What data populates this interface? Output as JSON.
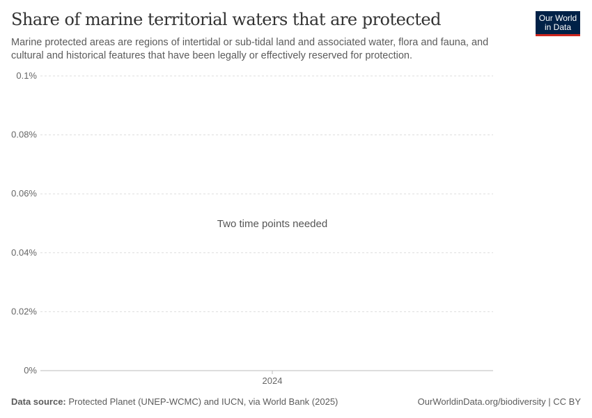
{
  "header": {
    "title": "Share of marine territorial waters that are protected",
    "subtitle": "Marine protected areas are regions of intertidal or sub-tidal land and associated water, flora and fauna, and cultural and historical features that have been legally or effectively reserved for protection.",
    "logo": "Our World in Data"
  },
  "chart_data": {
    "type": "line",
    "title": "Share of marine territorial waters that are protected",
    "yticks": [
      "0%",
      "0.02%",
      "0.04%",
      "0.06%",
      "0.08%",
      "0.1%"
    ],
    "yvalues": [
      0,
      0.02,
      0.04,
      0.06,
      0.08,
      0.1
    ],
    "ylim": [
      0,
      0.1
    ],
    "xticks": [
      "2024"
    ],
    "grid": true,
    "series": [],
    "message": "Two time points needed"
  },
  "footer": {
    "source_label": "Data source:",
    "source": "Protected Planet (UNEP-WCMC) and IUCN, via World Bank (2025)",
    "credit": "OurWorldinData.org/biodiversity | CC BY"
  },
  "colors": {
    "logo_bg": "#002147",
    "logo_accent": "#ce261e"
  }
}
